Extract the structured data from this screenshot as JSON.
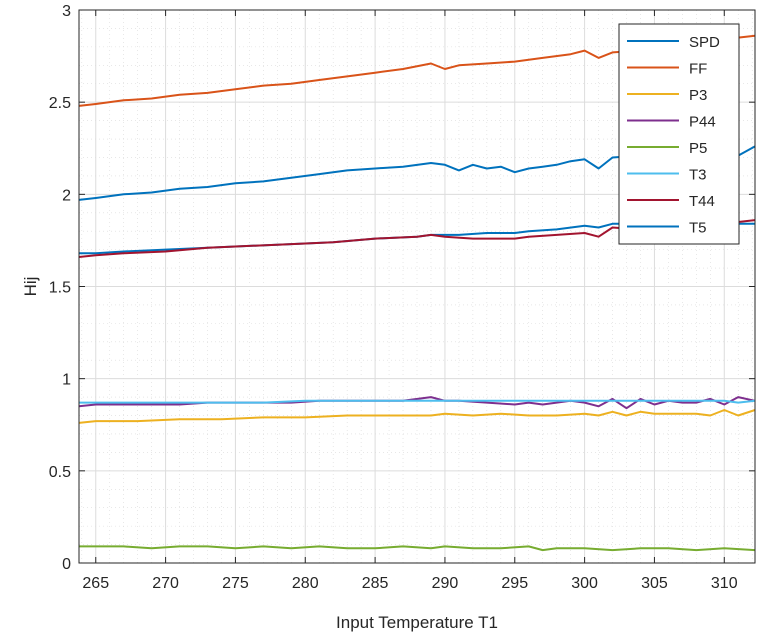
{
  "chart_data": {
    "type": "line",
    "xlabel": "Input Temperature T1",
    "ylabel": "Hij",
    "xlim": [
      263.8,
      312.2
    ],
    "ylim": [
      0,
      3
    ],
    "xticks": [
      "265",
      "270",
      "275",
      "280",
      "285",
      "290",
      "295",
      "300",
      "305",
      "310"
    ],
    "xtick_values": [
      265,
      270,
      275,
      280,
      285,
      290,
      295,
      300,
      305,
      310
    ],
    "yticks": [
      "0",
      "0.5",
      "1",
      "1.5",
      "2",
      "2.5",
      "3"
    ],
    "ytick_values": [
      0,
      0.5,
      1,
      1.5,
      2,
      2.5,
      3
    ],
    "grid": true,
    "minor_grid": true,
    "legend_position": "top-right",
    "series": [
      {
        "name": "SPD",
        "color": "#0072BD",
        "x": [
          263.8,
          265,
          267,
          270,
          273,
          276,
          279,
          282,
          285,
          288,
          289,
          290,
          291,
          293,
          295,
          296,
          298,
          300,
          301,
          302,
          305,
          308,
          310,
          311,
          312.2
        ],
        "y": [
          1.68,
          1.68,
          1.69,
          1.7,
          1.71,
          1.72,
          1.73,
          1.74,
          1.76,
          1.77,
          1.78,
          1.78,
          1.78,
          1.79,
          1.79,
          1.8,
          1.81,
          1.83,
          1.82,
          1.84,
          1.84,
          1.83,
          1.85,
          1.84,
          1.84
        ]
      },
      {
        "name": "FF",
        "color": "#D95319",
        "x": [
          263.8,
          265,
          267,
          269,
          271,
          273,
          275,
          277,
          279,
          281,
          283,
          285,
          287,
          289,
          290,
          291,
          293,
          295,
          297,
          299,
          300,
          301,
          302,
          304,
          306,
          308,
          310,
          311,
          312.2
        ],
        "y": [
          2.48,
          2.49,
          2.51,
          2.52,
          2.54,
          2.55,
          2.57,
          2.59,
          2.6,
          2.62,
          2.64,
          2.66,
          2.68,
          2.71,
          2.68,
          2.7,
          2.71,
          2.72,
          2.74,
          2.76,
          2.78,
          2.74,
          2.77,
          2.78,
          2.79,
          2.81,
          2.83,
          2.85,
          2.86
        ]
      },
      {
        "name": "P3",
        "color": "#EDB120",
        "x": [
          263.8,
          265,
          268,
          271,
          274,
          277,
          280,
          283,
          286,
          289,
          290,
          292,
          294,
          296,
          298,
          300,
          301,
          302,
          303,
          304,
          305,
          306,
          308,
          309,
          310,
          311,
          312.2
        ],
        "y": [
          0.76,
          0.77,
          0.77,
          0.78,
          0.78,
          0.79,
          0.79,
          0.8,
          0.8,
          0.8,
          0.81,
          0.8,
          0.81,
          0.8,
          0.8,
          0.81,
          0.8,
          0.82,
          0.8,
          0.82,
          0.81,
          0.81,
          0.81,
          0.8,
          0.83,
          0.8,
          0.83
        ]
      },
      {
        "name": "P44",
        "color": "#7E2F8E",
        "x": [
          263.8,
          265,
          267,
          269,
          271,
          273,
          275,
          277,
          279,
          281,
          283,
          285,
          287,
          289,
          290,
          291,
          293,
          295,
          296,
          297,
          298,
          299,
          300,
          301,
          302,
          303,
          304,
          305,
          306,
          307,
          308,
          309,
          310,
          311,
          312.2
        ],
        "y": [
          0.85,
          0.86,
          0.86,
          0.86,
          0.86,
          0.87,
          0.87,
          0.87,
          0.87,
          0.88,
          0.88,
          0.88,
          0.88,
          0.9,
          0.88,
          0.88,
          0.87,
          0.86,
          0.87,
          0.86,
          0.87,
          0.88,
          0.87,
          0.85,
          0.89,
          0.84,
          0.89,
          0.86,
          0.88,
          0.87,
          0.87,
          0.89,
          0.86,
          0.9,
          0.88
        ]
      },
      {
        "name": "P5",
        "color": "#77AC30",
        "x": [
          263.8,
          265,
          267,
          269,
          271,
          273,
          275,
          277,
          279,
          281,
          283,
          285,
          287,
          289,
          290,
          292,
          294,
          296,
          297,
          298,
          300,
          302,
          304,
          306,
          308,
          310,
          312.2
        ],
        "y": [
          0.09,
          0.09,
          0.09,
          0.08,
          0.09,
          0.09,
          0.08,
          0.09,
          0.08,
          0.09,
          0.08,
          0.08,
          0.09,
          0.08,
          0.09,
          0.08,
          0.08,
          0.09,
          0.07,
          0.08,
          0.08,
          0.07,
          0.08,
          0.08,
          0.07,
          0.08,
          0.07
        ]
      },
      {
        "name": "T3",
        "color": "#4DBEEE",
        "x": [
          263.8,
          265,
          268,
          271,
          274,
          277,
          280,
          283,
          286,
          289,
          290,
          292,
          294,
          296,
          298,
          300,
          302,
          304,
          306,
          308,
          310,
          311,
          312.2
        ],
        "y": [
          0.87,
          0.87,
          0.87,
          0.87,
          0.87,
          0.87,
          0.88,
          0.88,
          0.88,
          0.88,
          0.88,
          0.88,
          0.88,
          0.88,
          0.88,
          0.88,
          0.88,
          0.88,
          0.88,
          0.88,
          0.88,
          0.87,
          0.88
        ]
      },
      {
        "name": "T44",
        "color": "#A2142F",
        "x": [
          263.8,
          265,
          267,
          270,
          273,
          276,
          279,
          282,
          285,
          288,
          289,
          290,
          292,
          294,
          295,
          296,
          298,
          300,
          301,
          302,
          304,
          306,
          308,
          310,
          311,
          312.2
        ],
        "y": [
          1.66,
          1.67,
          1.68,
          1.69,
          1.71,
          1.72,
          1.73,
          1.74,
          1.76,
          1.77,
          1.78,
          1.77,
          1.76,
          1.76,
          1.76,
          1.77,
          1.78,
          1.79,
          1.77,
          1.82,
          1.81,
          1.82,
          1.83,
          1.84,
          1.85,
          1.86
        ]
      },
      {
        "name": "T5",
        "color": "#0072BD",
        "x": [
          263.8,
          265,
          267,
          269,
          271,
          273,
          275,
          277,
          279,
          281,
          283,
          285,
          287,
          289,
          290,
          291,
          292,
          293,
          294,
          295,
          296,
          297,
          298,
          299,
          300,
          301,
          302,
          304,
          306,
          308,
          310,
          311,
          312.2
        ],
        "y": [
          1.97,
          1.98,
          2.0,
          2.01,
          2.03,
          2.04,
          2.06,
          2.07,
          2.09,
          2.11,
          2.13,
          2.14,
          2.15,
          2.17,
          2.16,
          2.13,
          2.16,
          2.14,
          2.15,
          2.12,
          2.14,
          2.15,
          2.16,
          2.18,
          2.19,
          2.14,
          2.2,
          2.21,
          2.22,
          2.22,
          2.23,
          2.21,
          2.26
        ]
      }
    ]
  }
}
